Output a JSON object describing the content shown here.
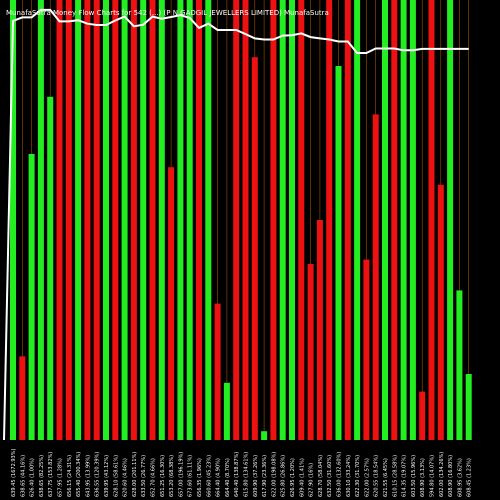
{
  "header": {
    "title": "MunafaSutra Money Flow Charts for 542 (...) (P N GADGIL JEWELLERS LIMITED) MunafaSutra"
  },
  "colors": {
    "background": "#000000",
    "inflow": "#22ee22",
    "outflow": "#ee1111",
    "grid": "#cc6600",
    "line": "#ffffff"
  },
  "chart_data": {
    "type": "bar",
    "title": "MunafaSutra Money Flow Charts for 542 (...) (P N GADGIL JEWELLERS LIMITED) MunafaSutra",
    "ylim": [
      0,
      100
    ],
    "grid": true,
    "categories": [
      "639.45 (1672.93%)",
      "638.65 (44.16%)",
      "626.40 (1.00%)",
      "638.65 (82.25%)",
      "637.75 (153.82%)",
      "657.95 (1.28%)",
      "656.15 (24.31%)",
      "655.40 (200.34%)",
      "643.95 (13.99%)",
      "636.55 (120.39%)",
      "639.95 (43.12%)",
      "628.10 (58.61%)",
      "620.60 (4.46%)",
      "628.00 (201.11%)",
      "633.50 (26.77%)",
      "652.70 (4.66%)",
      "651.25 (16.30%)",
      "653.20 (68.38%)",
      "657.00 (196.19%)",
      "673.60 (61.11%)",
      "656.35 (1.96%)",
      "660.60 (45.23%)",
      "664.40 (4.90%)",
      "664.40 (8.70%)",
      "640.40 (138.87%)",
      "615.80 (134.61%)",
      "609.90 (37.26%)",
      "617.90 (23.36%)",
      "622.00 (198.08%)",
      "625.80 (26.86%)",
      "626.95 (1.20%)",
      "609.40 (1.41%)",
      "627.90 (16%)",
      "628.70 (58.04%)",
      "632.50 (31.60%)",
      "636.00 (132.60%)",
      "630.10 (33.24%)",
      "622.30 (31.70%)",
      "622.00 (2.57%)",
      "620.55 (18.54%)",
      "621.55 (6.45%)",
      "610.15 (28.58%)",
      "614.35 (19.07%)",
      "603.50 (15.96%)",
      "608.90 (3.13%)",
      "594.80 (14.07%)",
      "602.00 (134.26%)",
      "608.90 (16.80%)",
      "608.95 (3.62%)",
      "608.45 (1.23%)"
    ],
    "series": [
      {
        "values": [
          100,
          19,
          65,
          100,
          78,
          100,
          100,
          100,
          100,
          100,
          100,
          100,
          100,
          100,
          100,
          100,
          100,
          62,
          100,
          100,
          100,
          100,
          31,
          13,
          100,
          100,
          87,
          2,
          100,
          100,
          100,
          100,
          40,
          50,
          100,
          85,
          100,
          100,
          41,
          74,
          100,
          100,
          100,
          100,
          11,
          100,
          58,
          100,
          34,
          15
        ],
        "directions": [
          "in",
          "out",
          "in",
          "in",
          "in",
          "out",
          "out",
          "in",
          "out",
          "out",
          "in",
          "out",
          "in",
          "out",
          "in",
          "out",
          "in",
          "out",
          "in",
          "in",
          "out",
          "in",
          "out",
          "in",
          "out",
          "out",
          "out",
          "in",
          "out",
          "in",
          "in",
          "out",
          "out",
          "out",
          "out",
          "in",
          "out",
          "in",
          "out",
          "out",
          "in",
          "out",
          "in",
          "in",
          "out",
          "out",
          "out",
          "in",
          "in",
          "in"
        ]
      },
      {
        "values": [
          639.45,
          644.4,
          644.4,
          655.2,
          655.2,
          638.65,
          638.65,
          640.4,
          635.4,
          633.5,
          633.5,
          639.95,
          645.5,
          631.65,
          634.0,
          645.5,
          642.5,
          645.0,
          647.6,
          643.75,
          629.4,
          635.4,
          626.4,
          626.4,
          626.4,
          620.6,
          614.35,
          612.75,
          612.75,
          618.4,
          619.0,
          621.55,
          616.25,
          614.35,
          612.75,
          609.9,
          609.9,
          593.5,
          593.5,
          600.0,
          600.0,
          600.0,
          597.3,
          597.3,
          599.4,
          599.4,
          599.4,
          599.4,
          599.4,
          599.4
        ]
      }
    ]
  }
}
